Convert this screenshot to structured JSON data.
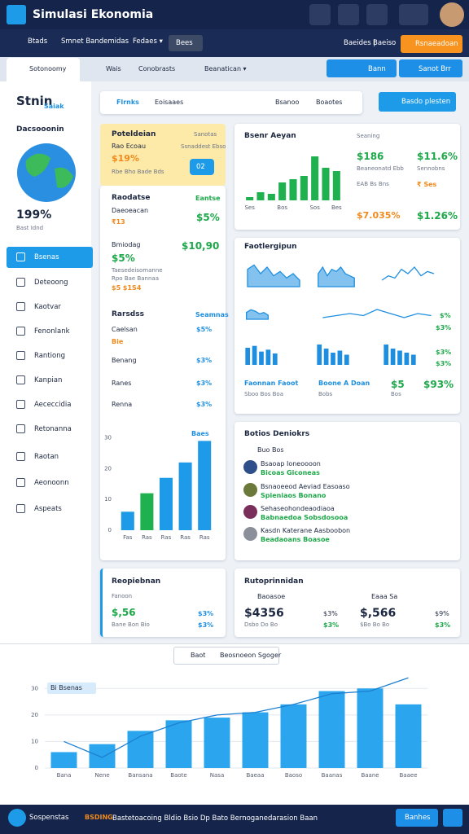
{
  "app": {
    "title": "Simulasi Ekonomia"
  },
  "nav": {
    "items": [
      "Btads",
      "Smnet Bandemidas",
      "Fedaes ▾"
    ],
    "button": "Bees",
    "links": [
      "Baeides |",
      "Baeiso"
    ],
    "cta": "Rsnaeadoan"
  },
  "tabs": {
    "items": [
      "Sotonoomy",
      "Wais",
      "Conobrasts",
      "Beanatican ▾"
    ],
    "buttons": [
      "Bann",
      "Sanot Brr"
    ]
  },
  "sidebar": {
    "logo": "Stnin",
    "logo_sub": "Saiak",
    "heading": "Dacsooonin",
    "stat": "199%",
    "stat_label": "Bast Idnd",
    "menu": [
      "Bsenas",
      "Deteoong",
      "Kaotvar",
      "Fenonlank",
      "Rantiong",
      "Kanpian",
      "Aececcidia",
      "Retonanna",
      "Raotan",
      "Aeonoonn",
      "Aspeats"
    ]
  },
  "subtabs": {
    "items": [
      "Flrnks",
      "Eoisaaes",
      "Bsanoo",
      "Boaotes"
    ],
    "button": "Basdo plesten"
  },
  "summary": {
    "title": "Poteldeian",
    "meta": "Sanotas",
    "row": "Rao Ecoau",
    "row_meta": "Ssnaddest Ebso",
    "value": "$19%",
    "badge": "02",
    "note": "Rbe Bho Bade Bds"
  },
  "panel_a": {
    "title": "Raodatse",
    "meta": "Eantse",
    "label1": "Daeoeacan",
    "value1": "$5%",
    "note1": "₹13",
    "label2": "Bmiodag",
    "value2": "$10,90",
    "value3": "$5%",
    "note2": "Taesedeisomanne",
    "note3": "Rpo Bae Bannaa",
    "note4": "$5 $1S4"
  },
  "panel_b": {
    "title": "Rarsdss",
    "meta": "Seamnas",
    "note": "Bie",
    "rows": [
      [
        "Caelsan",
        "$5%"
      ],
      [
        "Benang",
        "$3%"
      ],
      [
        "Ranes",
        "$3%"
      ],
      [
        "Renna",
        "$3%"
      ]
    ]
  },
  "kpi": {
    "title": "Bsenr Aeyan",
    "meta": "Seaning",
    "value1": "$186",
    "value2": "$11.6%",
    "note1": "Beaneonatd Ebb",
    "note2": "Sennobns",
    "note3": "EAB Bs Bns",
    "note4": "₹ Ses",
    "value3": "$7.035%",
    "value4": "$1.26%"
  },
  "trends": {
    "title": "Faotlergipun",
    "label1": "Faonnan Faoot",
    "label2": "Boone A Doan",
    "value1": "$5",
    "value2": "$93%",
    "note1": "Sboo Bos Boa",
    "note2": "Bobs",
    "note3": "Bos",
    "mini_values": [
      "$%",
      "$3%",
      "$3%",
      "$3%"
    ]
  },
  "contacts": {
    "title": "Botios Deniokrs",
    "filter": "Buo Bos",
    "people": [
      {
        "name": "Bsaoap Ioneoooon",
        "detail": "Bicoas Giconeas"
      },
      {
        "name": "Bsnaoeeod Aeviad Easoaso",
        "detail": "Spieniaos Bonano"
      },
      {
        "name": "Sehaseohondeaodiaoa",
        "detail": "Babnaedoa Sobsdosooa"
      },
      {
        "name": "Kasdn Katerane Aasboobon",
        "detail": "Beadaoans Boasoe"
      }
    ]
  },
  "report_left": {
    "title": "Reopiebnan",
    "sub": "Fanoon",
    "value": "$,56",
    "value2": "$3%",
    "note": "Bane Bon Bio",
    "note2": "$3%"
  },
  "report_right": {
    "title": "Rutoprinnidan",
    "tag1": "Baoasoe",
    "tag2": "Eaaa Sa",
    "value1": "$4356",
    "value2": "$3%",
    "value3": "$,566",
    "value4": "$9%",
    "note1": "Dsbo Do Bo",
    "note2": "$3%",
    "note3": "$Bo Bo Bo",
    "note4": "$3%"
  },
  "toolbar": {
    "chip": "Baot",
    "search": "Beosnoeon Sgoger"
  },
  "footer": {
    "title": "Sospenstas",
    "tag": "BSDING",
    "text": "Bastetoacoing Bldio Bsio Dp Bato Bernoganedarasion Baan",
    "button": "Banhes"
  },
  "chart_data": [
    {
      "type": "bar",
      "title": "Baes",
      "categories": [
        "Fas",
        "Ras",
        "Ras",
        "Ras",
        "Ras"
      ],
      "values": [
        6,
        12,
        17,
        22,
        29
      ],
      "colors": [
        "#1e9be8",
        "#1fb14f",
        "#1e9be8",
        "#1e9be8",
        "#1e9be8"
      ],
      "ylim": [
        0,
        32
      ],
      "yticks": [
        0,
        10,
        20,
        30
      ]
    },
    {
      "type": "bar",
      "categories": [
        "Ses",
        null,
        null,
        "Bos",
        null,
        null,
        "Sos",
        null,
        "Bes"
      ],
      "values": [
        4,
        10,
        8,
        22,
        26,
        30,
        54,
        40,
        36
      ],
      "color": "#1fb14f",
      "ylim": [
        0,
        60
      ]
    },
    {
      "type": "area",
      "values": [
        8,
        10,
        6,
        9,
        5,
        7,
        4,
        6,
        3
      ],
      "color": "#1e8fe0",
      "ylim": [
        0,
        12
      ]
    },
    {
      "type": "area",
      "values": [
        6,
        9,
        5,
        8,
        7,
        9,
        6,
        5,
        4
      ],
      "color": "#1e8fe0",
      "ylim": [
        0,
        12
      ]
    },
    {
      "type": "line",
      "values": [
        3,
        5,
        4,
        8,
        6,
        9,
        5,
        7,
        6
      ],
      "color": "#1e8fe0",
      "ylim": [
        0,
        12
      ]
    },
    {
      "type": "area",
      "values": [
        5,
        7,
        6,
        4,
        5,
        3
      ],
      "color": "#1e8fe0",
      "ylim": [
        0,
        12
      ]
    },
    {
      "type": "line",
      "values": [
        4,
        5,
        6,
        5,
        8,
        6,
        4,
        6,
        5
      ],
      "color": "#1e8fe0",
      "ylim": [
        0,
        12
      ]
    },
    {
      "type": "bar",
      "values": [
        9,
        10,
        7,
        8,
        6
      ],
      "color": "#1e8fe0",
      "ylim": [
        0,
        12
      ]
    },
    {
      "type": "bar",
      "values": [
        10,
        8,
        6,
        7,
        5
      ],
      "color": "#1e8fe0",
      "ylim": [
        0,
        12
      ]
    },
    {
      "type": "bar",
      "values": [
        10,
        8,
        7,
        6,
        5
      ],
      "color": "#1e8fe0",
      "ylim": [
        0,
        12
      ]
    },
    {
      "type": "combo",
      "categories": [
        "Bana",
        "Nene",
        "Bansana",
        "Baote",
        "Nasa",
        "Baeaa",
        "Baoso",
        "Baanas",
        "Baane",
        "Baaee"
      ],
      "series": [
        {
          "name": "Bi Bsenas",
          "kind": "bar",
          "color": "#2aa5ee",
          "values": [
            6,
            9,
            14,
            18,
            19,
            21,
            24,
            29,
            30,
            24
          ]
        },
        {
          "kind": "line",
          "color": "#1e7fd0",
          "values": [
            10,
            4,
            12,
            17,
            20,
            21,
            24,
            28,
            29,
            34
          ]
        }
      ],
      "ylim": [
        0,
        35
      ],
      "yticks": [
        0,
        10,
        20,
        30
      ],
      "grid": true
    }
  ]
}
